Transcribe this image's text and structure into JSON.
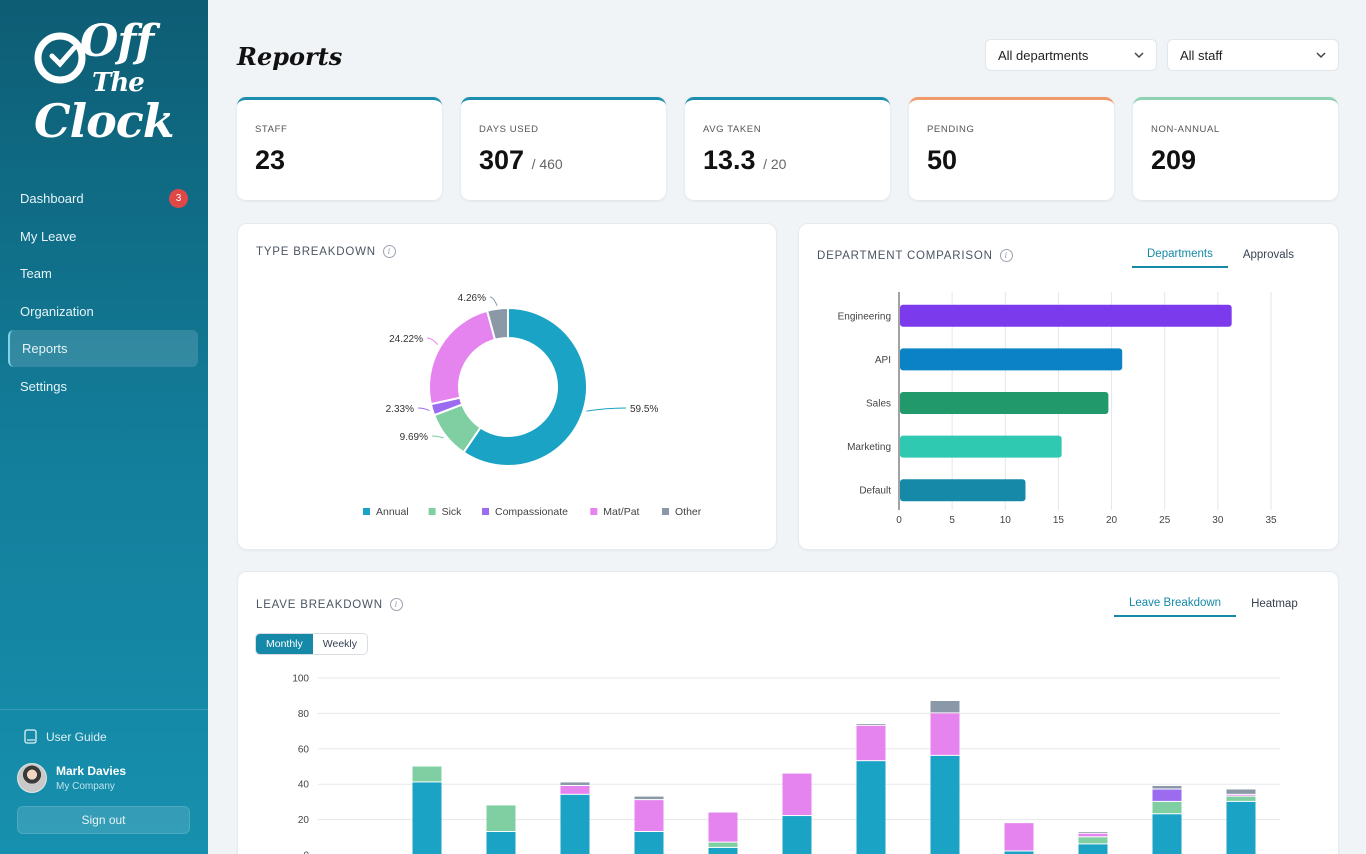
{
  "brand": {
    "logo_line1": "Off",
    "logo_line2": "The",
    "logo_line3": "Clock"
  },
  "sidebar": {
    "items": [
      {
        "label": "Dashboard",
        "badge": "3"
      },
      {
        "label": "My Leave"
      },
      {
        "label": "Team"
      },
      {
        "label": "Organization"
      },
      {
        "label": "Reports"
      },
      {
        "label": "Settings"
      }
    ],
    "guide_label": "User Guide",
    "user_name": "Mark Davies",
    "user_company": "My Company",
    "signout_label": "Sign out"
  },
  "header": {
    "title": "Reports",
    "filter_department": "All departments",
    "filter_staff": "All staff"
  },
  "stats": [
    {
      "label": "STAFF",
      "value": "23"
    },
    {
      "label": "DAYS USED",
      "value": "307",
      "of": "/ 460"
    },
    {
      "label": "AVG TAKEN",
      "value": "13.3",
      "of": "/ 20"
    },
    {
      "label": "PENDING",
      "value": "50"
    },
    {
      "label": "NON-ANNUAL",
      "value": "209"
    }
  ],
  "type_panel": {
    "title": "TYPE BREAKDOWN"
  },
  "dept_panel": {
    "title": "DEPARTMENT COMPARISON",
    "tabs": [
      "Departments",
      "Approvals"
    ]
  },
  "leave_panel": {
    "title": "LEAVE BREAKDOWN",
    "tabs": [
      "Leave Breakdown",
      "Heatmap"
    ],
    "seg": [
      "Monthly",
      "Weekly"
    ]
  },
  "colors": {
    "annual": "#1aa3c4",
    "sick": "#7fcfa3",
    "compassionate": "#9b6cf0",
    "matpat": "#e684ef",
    "other": "#8a98a8"
  },
  "chart_data": [
    {
      "type": "pie",
      "title": "",
      "categories": [
        "Annual",
        "Sick",
        "Compassionate",
        "Mat/Pat",
        "Other"
      ],
      "values": [
        59.5,
        9.69,
        2.33,
        24.22,
        4.26
      ],
      "labels": [
        "59.5%",
        "9.69%",
        "2.33%",
        "24.22%",
        "4.26%"
      ],
      "colors": [
        "#1aa3c4",
        "#7fcfa3",
        "#9b6cf0",
        "#e684ef",
        "#8a98a8"
      ],
      "legend": "bottom"
    },
    {
      "type": "bar",
      "orientation": "horizontal",
      "categories": [
        "Engineering",
        "API",
        "Sales",
        "Marketing",
        "Default"
      ],
      "values": [
        31.3,
        21,
        19.7,
        15.3,
        11.9
      ],
      "colors": [
        "#7c3aed",
        "#0b82c5",
        "#22996a",
        "#2ec9b0",
        "#1689a8"
      ],
      "xlim": [
        0,
        35
      ],
      "xticks": [
        "0",
        "5",
        "10",
        "15",
        "20",
        "25",
        "30",
        "35"
      ],
      "grid": true
    },
    {
      "type": "bar",
      "stacked": true,
      "ylim": [
        0,
        100
      ],
      "yticks": [
        "0",
        "20",
        "40",
        "60",
        "80",
        "100"
      ],
      "series": [
        {
          "values": [
            0.3,
            41,
            13,
            34,
            13,
            4,
            22,
            53,
            56,
            2,
            6,
            23,
            30
          ]
        },
        {
          "values": [
            0,
            9,
            15,
            0,
            0,
            3,
            0,
            0,
            0,
            0,
            4,
            7,
            3
          ]
        },
        {
          "values": [
            0,
            0,
            0,
            0,
            0,
            0,
            0,
            0,
            0,
            0,
            0,
            7,
            0
          ]
        },
        {
          "values": [
            0,
            0,
            0,
            5,
            18,
            17,
            24,
            20,
            24,
            16,
            2,
            0,
            1
          ]
        },
        {
          "values": [
            0,
            0,
            0,
            2,
            2,
            0,
            0,
            1,
            7,
            0,
            1,
            2,
            3
          ]
        }
      ],
      "grid": true
    }
  ]
}
